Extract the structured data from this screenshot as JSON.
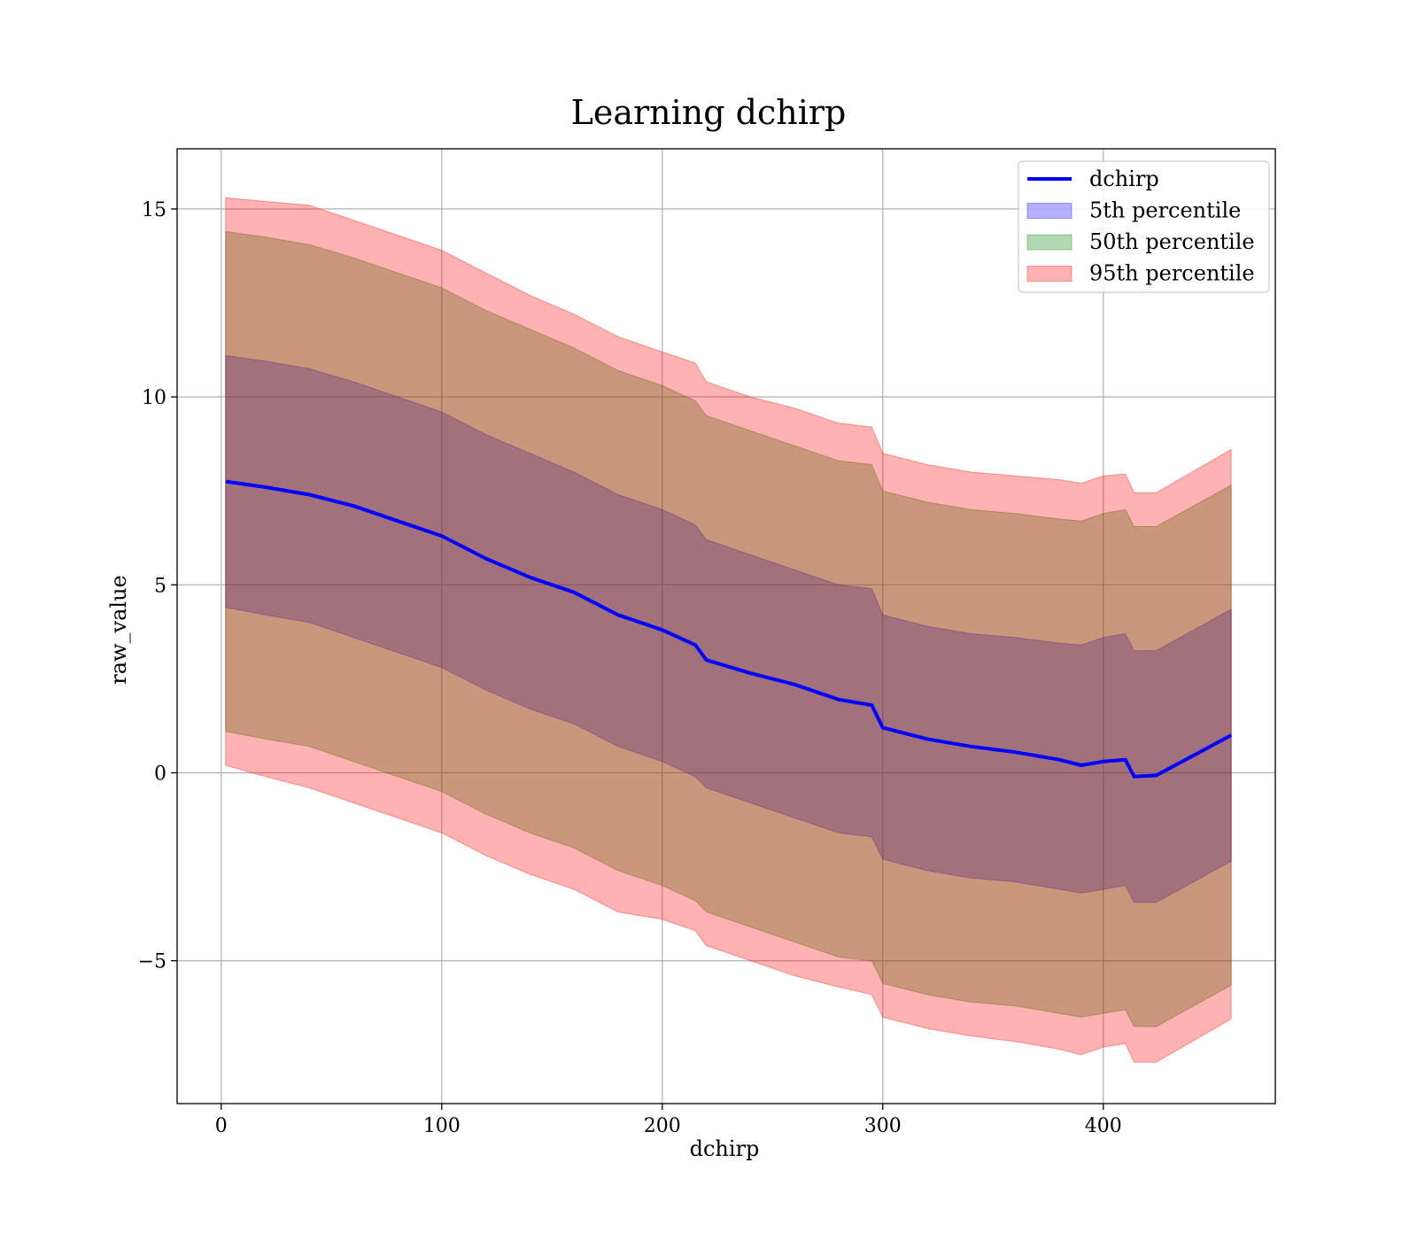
{
  "chart_data": {
    "type": "line",
    "title": "Learning dchirp",
    "xlabel": "dchirp",
    "ylabel": "raw_value",
    "xlim": [
      -20,
      478
    ],
    "ylim": [
      -8.8,
      16.6
    ],
    "xticks": [
      0,
      100,
      200,
      300,
      400
    ],
    "yticks": [
      -5,
      0,
      5,
      10,
      15
    ],
    "ytick_labels": [
      "−5",
      "0",
      "5",
      "10",
      "15"
    ],
    "grid": true,
    "legend_position": "top-right",
    "colors": {
      "line": "#0000ff",
      "band_5": "#0000ff",
      "band_50": "#008000",
      "band_95": "#ff0000"
    },
    "legend": [
      {
        "label": "dchirp",
        "kind": "line",
        "color": "#0000ff"
      },
      {
        "label": "5th percentile",
        "kind": "patch",
        "color": "#0000ff"
      },
      {
        "label": "50th percentile",
        "kind": "patch",
        "color": "#008000"
      },
      {
        "label": "95th percentile",
        "kind": "patch",
        "color": "#ff0000"
      }
    ],
    "x": [
      2,
      20,
      40,
      60,
      80,
      100,
      120,
      140,
      160,
      180,
      200,
      215,
      220,
      240,
      260,
      280,
      295,
      300,
      320,
      340,
      360,
      380,
      390,
      400,
      410,
      414,
      424,
      458
    ],
    "series": [
      {
        "name": "dchirp",
        "values": [
          7.75,
          7.6,
          7.4,
          7.1,
          6.7,
          6.3,
          5.7,
          5.2,
          4.8,
          4.2,
          3.8,
          3.4,
          3.0,
          2.65,
          2.35,
          1.95,
          1.8,
          1.2,
          0.9,
          0.7,
          0.55,
          0.35,
          0.2,
          0.3,
          0.35,
          -0.1,
          -0.07,
          1.0
        ]
      }
    ],
    "bands": [
      {
        "name": "5th percentile",
        "lower": [
          4.4,
          4.2,
          4.0,
          3.6,
          3.2,
          2.8,
          2.2,
          1.7,
          1.3,
          0.7,
          0.3,
          -0.1,
          -0.4,
          -0.8,
          -1.2,
          -1.6,
          -1.7,
          -2.3,
          -2.6,
          -2.8,
          -2.9,
          -3.1,
          -3.2,
          -3.1,
          -3.0,
          -3.45,
          -3.45,
          -2.35
        ],
        "upper": [
          11.1,
          10.95,
          10.75,
          10.4,
          10.0,
          9.6,
          9.0,
          8.5,
          8.0,
          7.4,
          7.0,
          6.6,
          6.2,
          5.8,
          5.4,
          5.0,
          4.9,
          4.2,
          3.9,
          3.7,
          3.6,
          3.45,
          3.4,
          3.6,
          3.7,
          3.25,
          3.25,
          4.35
        ]
      },
      {
        "name": "50th percentile",
        "lower": [
          1.1,
          0.9,
          0.7,
          0.3,
          -0.1,
          -0.5,
          -1.1,
          -1.6,
          -2.0,
          -2.6,
          -3.0,
          -3.4,
          -3.7,
          -4.1,
          -4.5,
          -4.9,
          -5.0,
          -5.6,
          -5.9,
          -6.1,
          -6.2,
          -6.4,
          -6.5,
          -6.4,
          -6.3,
          -6.75,
          -6.75,
          -5.65
        ],
        "upper": [
          14.4,
          14.25,
          14.05,
          13.7,
          13.3,
          12.9,
          12.3,
          11.8,
          11.3,
          10.7,
          10.3,
          9.9,
          9.5,
          9.1,
          8.7,
          8.3,
          8.2,
          7.5,
          7.2,
          7.0,
          6.9,
          6.75,
          6.7,
          6.9,
          7.0,
          6.55,
          6.55,
          7.65
        ]
      },
      {
        "name": "95th percentile",
        "lower": [
          0.2,
          -0.1,
          -0.4,
          -0.8,
          -1.2,
          -1.6,
          -2.2,
          -2.7,
          -3.1,
          -3.7,
          -3.9,
          -4.2,
          -4.6,
          -5.0,
          -5.4,
          -5.7,
          -5.9,
          -6.5,
          -6.8,
          -7.0,
          -7.15,
          -7.35,
          -7.5,
          -7.3,
          -7.2,
          -7.7,
          -7.7,
          -6.55
        ],
        "upper": [
          15.3,
          15.2,
          15.1,
          14.7,
          14.3,
          13.9,
          13.3,
          12.7,
          12.2,
          11.6,
          11.2,
          10.9,
          10.4,
          10.0,
          9.7,
          9.3,
          9.2,
          8.5,
          8.2,
          8.0,
          7.9,
          7.8,
          7.7,
          7.9,
          7.95,
          7.45,
          7.45,
          8.6
        ]
      }
    ]
  }
}
